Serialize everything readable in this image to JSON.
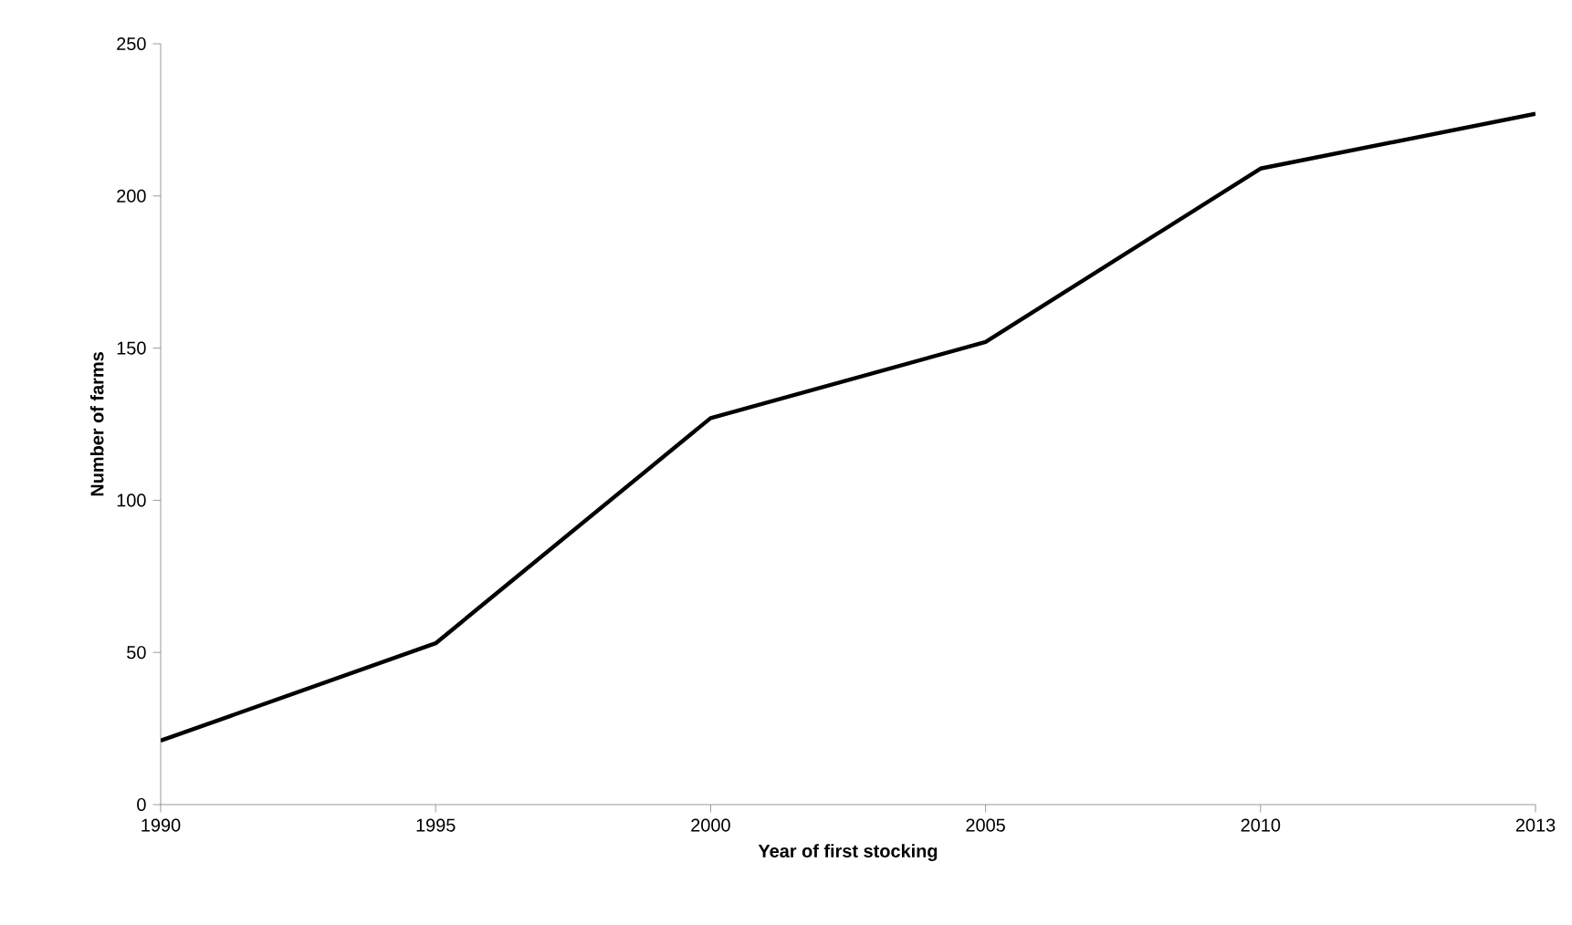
{
  "chart_data": {
    "type": "line",
    "xlabel": "Year of first stocking",
    "ylabel": "Number of farms",
    "categories": [
      "1990",
      "1995",
      "2000",
      "2005",
      "2010",
      "2013"
    ],
    "series": [
      {
        "color": "#000000",
        "values": [
          21,
          53,
          127,
          152,
          209,
          227
        ]
      }
    ],
    "ylim": [
      0,
      250
    ],
    "yticks": [
      0,
      50,
      100,
      150,
      200,
      250
    ],
    "grid": false,
    "marker": "none",
    "line_style": "solid"
  }
}
